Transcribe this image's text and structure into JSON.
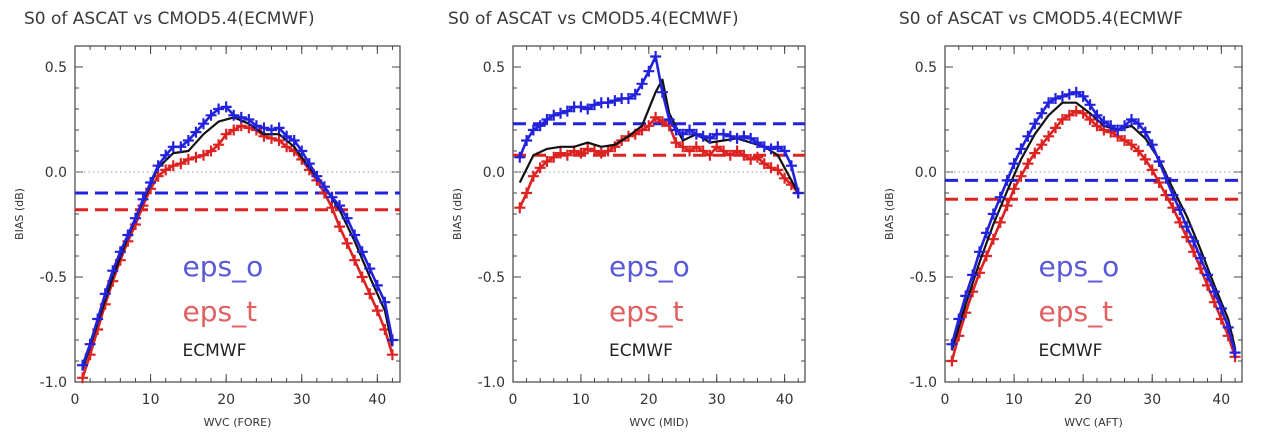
{
  "colors": {
    "eps_o": "#2222dd",
    "eps_t": "#dd2222",
    "ecmwf": "#111111",
    "eps_o_label": "#5a5ad8",
    "eps_t_label": "#e06060"
  },
  "chart_data": [
    {
      "type": "line",
      "title": "S0 of ASCAT vs CMOD5.4(ECMWF)",
      "xlabel": "WVC (FORE)",
      "ylabel": "BIAS (dB)",
      "xlim": [
        0,
        43
      ],
      "ylim": [
        -1.0,
        0.6
      ],
      "xticks": [
        0,
        10,
        20,
        30,
        40
      ],
      "yticks": [
        -1.0,
        -0.5,
        0.0,
        0.5
      ],
      "ytick_labels": [
        "-1.0",
        "-0.5",
        "0.0",
        "0.5"
      ],
      "legend": [
        "eps_o",
        "eps_t",
        "ECMWF"
      ],
      "zero_line": 0.0,
      "hlines": [
        {
          "series": "eps_o",
          "value": -0.1
        },
        {
          "series": "eps_t",
          "value": -0.18
        }
      ],
      "series": [
        {
          "name": "eps_o",
          "x": [
            1,
            2,
            3,
            4,
            5,
            6,
            7,
            8,
            9,
            10,
            11,
            12,
            13,
            14,
            15,
            16,
            17,
            18,
            19,
            20,
            21,
            22,
            23,
            24,
            25,
            26,
            27,
            28,
            29,
            30,
            31,
            32,
            33,
            34,
            35,
            36,
            37,
            38,
            39,
            40,
            41,
            42
          ],
          "values": [
            -0.92,
            -0.82,
            -0.7,
            -0.58,
            -0.47,
            -0.38,
            -0.3,
            -0.22,
            -0.13,
            -0.05,
            0.03,
            0.08,
            0.12,
            0.12,
            0.15,
            0.19,
            0.23,
            0.27,
            0.3,
            0.31,
            0.27,
            0.26,
            0.25,
            0.22,
            0.21,
            0.2,
            0.21,
            0.17,
            0.15,
            0.1,
            0.04,
            -0.02,
            -0.07,
            -0.12,
            -0.16,
            -0.22,
            -0.3,
            -0.38,
            -0.46,
            -0.54,
            -0.62,
            -0.8
          ]
        },
        {
          "name": "eps_t",
          "x": [
            1,
            2,
            3,
            4,
            5,
            6,
            7,
            8,
            9,
            10,
            11,
            12,
            13,
            14,
            15,
            16,
            17,
            18,
            19,
            20,
            21,
            22,
            23,
            24,
            25,
            26,
            27,
            28,
            29,
            30,
            31,
            32,
            33,
            34,
            35,
            36,
            37,
            38,
            39,
            40,
            41,
            42
          ],
          "values": [
            -0.98,
            -0.87,
            -0.75,
            -0.63,
            -0.52,
            -0.42,
            -0.33,
            -0.25,
            -0.16,
            -0.08,
            -0.02,
            0.01,
            0.03,
            0.04,
            0.06,
            0.07,
            0.08,
            0.1,
            0.13,
            0.18,
            0.2,
            0.22,
            0.21,
            0.2,
            0.17,
            0.16,
            0.15,
            0.12,
            0.1,
            0.06,
            0.01,
            -0.04,
            -0.1,
            -0.17,
            -0.26,
            -0.34,
            -0.42,
            -0.5,
            -0.58,
            -0.66,
            -0.75,
            -0.87
          ]
        },
        {
          "name": "ECMWF",
          "x": [
            1,
            3,
            5,
            7,
            9,
            11,
            13,
            15,
            17,
            19,
            21,
            23,
            25,
            27,
            29,
            31,
            33,
            35,
            37,
            39,
            41,
            42
          ],
          "values": [
            -0.94,
            -0.72,
            -0.5,
            -0.31,
            -0.14,
            0.02,
            0.09,
            0.1,
            0.18,
            0.24,
            0.26,
            0.23,
            0.18,
            0.18,
            0.12,
            0.02,
            -0.07,
            -0.18,
            -0.33,
            -0.5,
            -0.66,
            -0.83
          ]
        }
      ]
    },
    {
      "type": "line",
      "title": "S0 of ASCAT vs CMOD5.4(ECMWF)",
      "xlabel": "WVC (MID)",
      "ylabel": "BIAS (dB)",
      "xlim": [
        0,
        43
      ],
      "ylim": [
        -1.0,
        0.6
      ],
      "xticks": [
        0,
        10,
        20,
        30,
        40
      ],
      "yticks": [
        -1.0,
        -0.5,
        0.0,
        0.5
      ],
      "ytick_labels": [
        "-1.0",
        "-0.5",
        "0.0",
        "0.5"
      ],
      "legend": [
        "eps_o",
        "eps_t",
        "ECMWF"
      ],
      "zero_line": 0.0,
      "hlines": [
        {
          "series": "eps_o",
          "value": 0.23
        },
        {
          "series": "eps_t",
          "value": 0.08
        }
      ],
      "series": [
        {
          "name": "eps_o",
          "x": [
            1,
            2,
            3,
            4,
            5,
            6,
            7,
            8,
            9,
            10,
            11,
            12,
            13,
            14,
            15,
            16,
            17,
            18,
            19,
            20,
            21,
            22,
            23,
            24,
            25,
            26,
            27,
            28,
            29,
            30,
            31,
            32,
            33,
            34,
            35,
            36,
            37,
            38,
            39,
            40,
            41,
            42
          ],
          "values": [
            0.07,
            0.15,
            0.2,
            0.22,
            0.25,
            0.27,
            0.28,
            0.29,
            0.31,
            0.31,
            0.3,
            0.32,
            0.33,
            0.33,
            0.34,
            0.35,
            0.35,
            0.37,
            0.42,
            0.48,
            0.55,
            0.38,
            0.25,
            0.2,
            0.18,
            0.2,
            0.18,
            0.17,
            0.16,
            0.18,
            0.18,
            0.17,
            0.16,
            0.17,
            0.16,
            0.14,
            0.12,
            0.11,
            0.12,
            0.1,
            0.03,
            -0.1
          ]
        },
        {
          "name": "eps_t",
          "x": [
            1,
            2,
            3,
            4,
            5,
            6,
            7,
            8,
            9,
            10,
            11,
            12,
            13,
            14,
            15,
            16,
            17,
            18,
            19,
            20,
            21,
            22,
            23,
            24,
            25,
            26,
            27,
            28,
            29,
            30,
            31,
            32,
            33,
            34,
            35,
            36,
            37,
            38,
            39,
            40,
            41,
            42
          ],
          "values": [
            -0.17,
            -0.1,
            -0.02,
            0.02,
            0.05,
            0.07,
            0.09,
            0.08,
            0.1,
            0.09,
            0.11,
            0.1,
            0.09,
            0.1,
            0.12,
            0.15,
            0.17,
            0.18,
            0.2,
            0.22,
            0.26,
            0.24,
            0.22,
            0.14,
            0.12,
            0.1,
            0.12,
            0.1,
            0.08,
            0.12,
            0.1,
            0.08,
            0.1,
            0.08,
            0.06,
            0.07,
            0.04,
            0.02,
            0.01,
            -0.03,
            -0.06,
            -0.1
          ]
        },
        {
          "name": "ECMWF",
          "x": [
            1,
            3,
            5,
            7,
            9,
            11,
            13,
            15,
            17,
            19,
            21,
            22,
            23,
            25,
            27,
            29,
            31,
            33,
            35,
            37,
            39,
            42
          ],
          "values": [
            -0.05,
            0.08,
            0.11,
            0.12,
            0.12,
            0.14,
            0.12,
            0.13,
            0.17,
            0.22,
            0.38,
            0.44,
            0.28,
            0.15,
            0.18,
            0.14,
            0.15,
            0.16,
            0.14,
            0.12,
            0.08,
            -0.1
          ]
        }
      ]
    },
    {
      "type": "line",
      "title": "S0 of ASCAT vs CMOD5.4(ECMWF",
      "xlabel": "WVC (AFT)",
      "ylabel": "BIAS (dB)",
      "xlim": [
        0,
        43
      ],
      "ylim": [
        -1.0,
        0.6
      ],
      "xticks": [
        0,
        10,
        20,
        30,
        40
      ],
      "yticks": [
        -1.0,
        -0.5,
        0.0,
        0.5
      ],
      "ytick_labels": [
        "-1.0",
        "-0.5",
        "0.0",
        "0.5"
      ],
      "legend": [
        "eps_o",
        "eps_t",
        "ECMWF"
      ],
      "zero_line": 0.0,
      "hlines": [
        {
          "series": "eps_o",
          "value": -0.04
        },
        {
          "series": "eps_t",
          "value": -0.13
        }
      ],
      "series": [
        {
          "name": "eps_o",
          "x": [
            1,
            2,
            3,
            4,
            5,
            6,
            7,
            8,
            9,
            10,
            11,
            12,
            13,
            14,
            15,
            16,
            17,
            18,
            19,
            20,
            21,
            22,
            23,
            24,
            25,
            26,
            27,
            28,
            29,
            30,
            31,
            32,
            33,
            34,
            35,
            36,
            37,
            38,
            39,
            40,
            41,
            42
          ],
          "values": [
            -0.82,
            -0.7,
            -0.59,
            -0.49,
            -0.38,
            -0.29,
            -0.2,
            -0.12,
            -0.04,
            0.04,
            0.11,
            0.17,
            0.23,
            0.28,
            0.33,
            0.35,
            0.36,
            0.37,
            0.38,
            0.36,
            0.32,
            0.27,
            0.24,
            0.22,
            0.2,
            0.22,
            0.25,
            0.23,
            0.19,
            0.13,
            0.05,
            -0.03,
            -0.11,
            -0.18,
            -0.26,
            -0.33,
            -0.41,
            -0.49,
            -0.57,
            -0.65,
            -0.74,
            -0.86
          ]
        },
        {
          "name": "eps_t",
          "x": [
            1,
            2,
            3,
            4,
            5,
            6,
            7,
            8,
            9,
            10,
            11,
            12,
            13,
            14,
            15,
            16,
            17,
            18,
            19,
            20,
            21,
            22,
            23,
            24,
            25,
            26,
            27,
            28,
            29,
            30,
            31,
            32,
            33,
            34,
            35,
            36,
            37,
            38,
            39,
            40,
            41,
            42
          ],
          "values": [
            -0.9,
            -0.78,
            -0.67,
            -0.57,
            -0.48,
            -0.4,
            -0.32,
            -0.24,
            -0.16,
            -0.08,
            -0.02,
            0.04,
            0.09,
            0.13,
            0.17,
            0.21,
            0.25,
            0.27,
            0.29,
            0.28,
            0.25,
            0.22,
            0.2,
            0.19,
            0.17,
            0.15,
            0.13,
            0.1,
            0.06,
            0.01,
            -0.05,
            -0.11,
            -0.17,
            -0.24,
            -0.31,
            -0.38,
            -0.46,
            -0.54,
            -0.62,
            -0.7,
            -0.78,
            -0.88
          ]
        },
        {
          "name": "ECMWF",
          "x": [
            1,
            3,
            5,
            7,
            9,
            11,
            13,
            15,
            17,
            19,
            21,
            23,
            25,
            27,
            29,
            31,
            33,
            35,
            37,
            39,
            41,
            42
          ],
          "values": [
            -0.85,
            -0.63,
            -0.43,
            -0.25,
            -0.09,
            0.06,
            0.18,
            0.27,
            0.33,
            0.33,
            0.28,
            0.22,
            0.2,
            0.22,
            0.16,
            0.06,
            -0.08,
            -0.21,
            -0.37,
            -0.54,
            -0.7,
            -0.84
          ]
        }
      ]
    }
  ]
}
